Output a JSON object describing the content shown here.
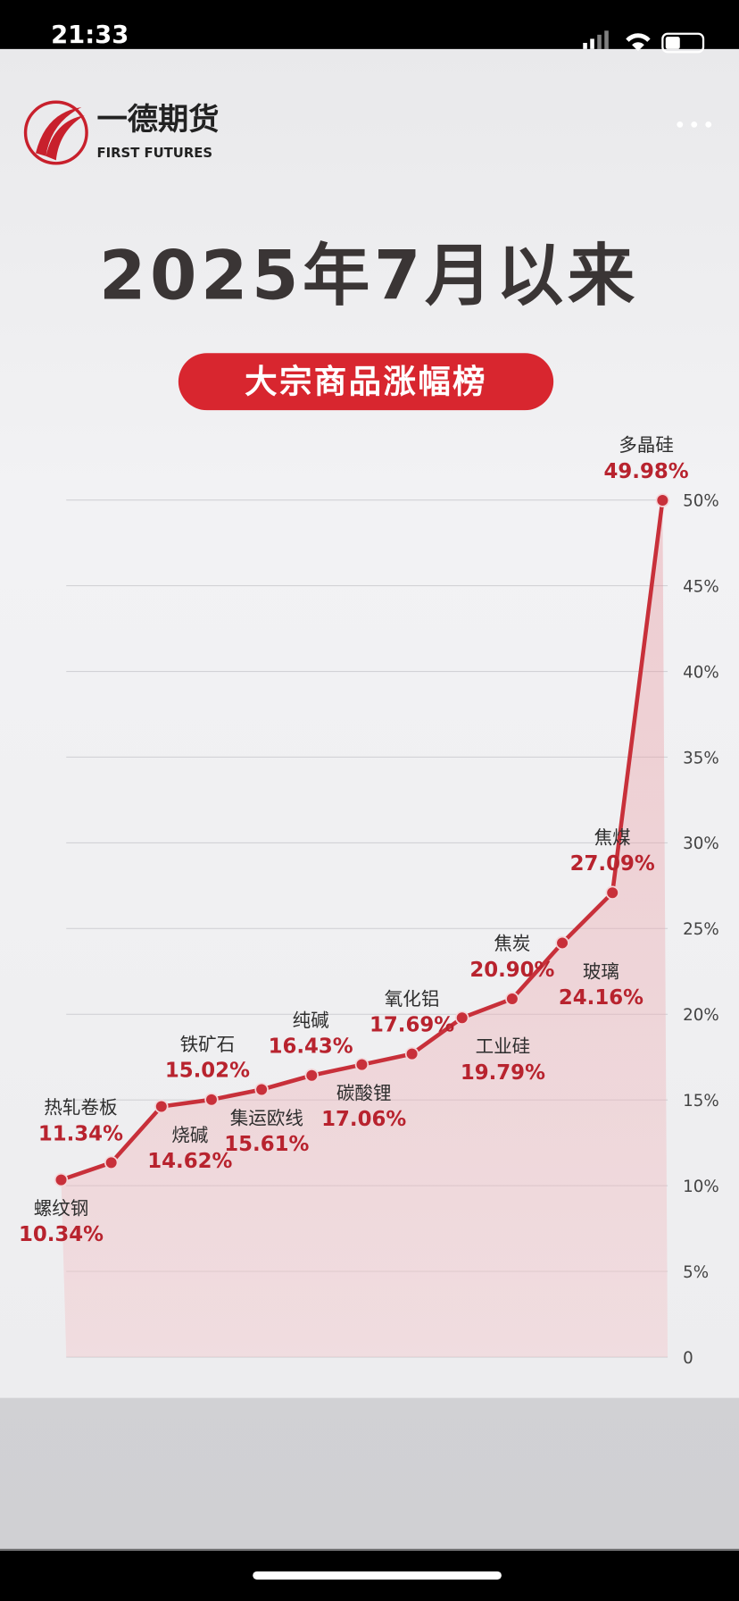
{
  "status_bar": {
    "time": "21:33"
  },
  "header": {
    "brand": "一德期货",
    "brand_en": "FIRST FUTURES"
  },
  "chart_data": {
    "type": "line",
    "title": "2025年7月以来",
    "subtitle": "大宗商品涨幅榜",
    "categories": [
      "螺纹钢",
      "热轧卷板",
      "烧碱",
      "铁矿石",
      "集运欧线",
      "纯碱",
      "碳酸锂",
      "氧化铝",
      "工业硅",
      "焦炭",
      "玻璃",
      "焦煤",
      "多晶硅"
    ],
    "values": [
      10.34,
      11.34,
      14.62,
      15.02,
      15.61,
      16.43,
      17.06,
      17.69,
      19.79,
      20.9,
      24.16,
      27.09,
      49.98
    ],
    "value_labels": [
      "10.34%",
      "11.34%",
      "14.62%",
      "15.02%",
      "15.61%",
      "16.43%",
      "17.06%",
      "17.69%",
      "19.79%",
      "20.90%",
      "24.16%",
      "27.09%",
      "49.98%"
    ],
    "color": "#c8303a",
    "ylim": [
      0,
      50
    ],
    "yticks": [
      0,
      {
        "value": 5,
        "label": "5%"
      },
      {
        "value": 10,
        "label": "10%"
      },
      {
        "value": 15,
        "label": "15%"
      },
      {
        "value": 20,
        "label": "20%"
      },
      {
        "value": 25,
        "label": "25%"
      },
      {
        "value": 30,
        "label": "30%"
      },
      {
        "value": 35,
        "label": "35%"
      },
      {
        "value": 40,
        "label": "40%"
      },
      {
        "value": 45,
        "label": "45%"
      },
      {
        "value": 50,
        "label": "50%"
      }
    ],
    "grid": true
  }
}
